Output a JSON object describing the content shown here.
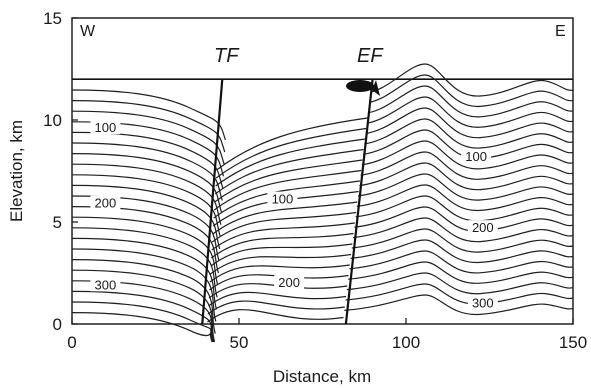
{
  "chart_data": {
    "type": "contour",
    "xlabel": "Distance, km",
    "ylabel": "Elevation, km",
    "xlim": [
      0,
      150
    ],
    "ylim": [
      0,
      15
    ],
    "surface_elevation": 12,
    "x_ticks": [
      0,
      50,
      100,
      150
    ],
    "y_ticks": [
      0,
      5,
      10,
      15
    ],
    "grid": false,
    "direction_labels": {
      "left": "W",
      "right": "E"
    },
    "faults": [
      {
        "label": "TF",
        "top": [
          45,
          12
        ],
        "bottom": [
          39,
          0
        ]
      },
      {
        "label": "EF",
        "top": [
          90,
          12
        ],
        "bottom": [
          82,
          0
        ]
      }
    ],
    "contour_labels": [
      {
        "text": "100",
        "x": 10,
        "y": 9.5
      },
      {
        "text": "200",
        "x": 10,
        "y": 5.8
      },
      {
        "text": "300",
        "x": 10,
        "y": 1.8
      },
      {
        "text": "100",
        "x": 63,
        "y": 6.0
      },
      {
        "text": "200",
        "x": 65,
        "y": 1.9
      },
      {
        "text": "100",
        "x": 121,
        "y": 8.1
      },
      {
        "text": "200",
        "x": 123,
        "y": 4.6
      },
      {
        "text": "300",
        "x": 123,
        "y": 0.9
      }
    ]
  }
}
